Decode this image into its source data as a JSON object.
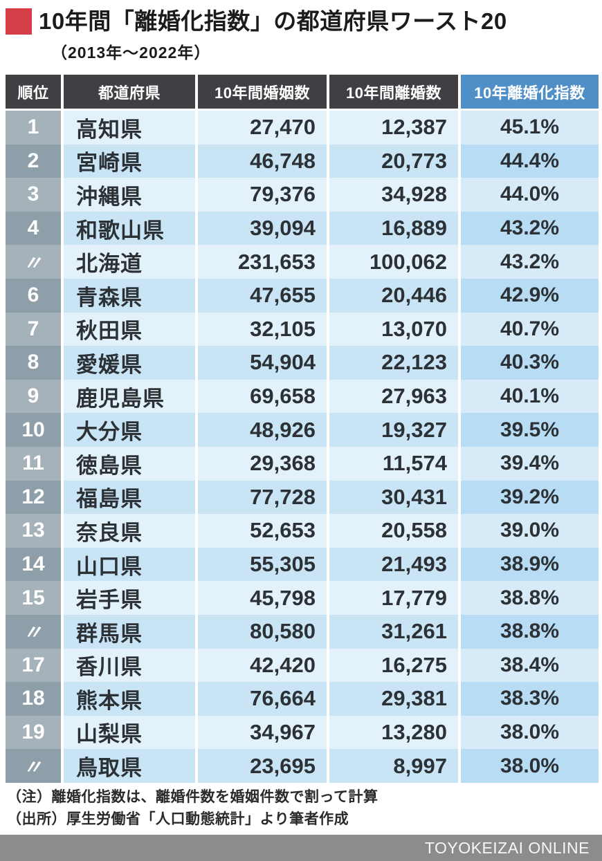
{
  "title": {
    "text": "10年間「離婚化指数」の都道府県ワースト20",
    "subtitle": "（2013年～2022年）"
  },
  "colors": {
    "accent_red": "#d53d47",
    "header_dark": "#3f3f44",
    "header_blue": "#4e8fc7",
    "rank_odd": "#a6b2ba",
    "rank_even": "#8f9fa9",
    "row_odd": "#e3f1fa",
    "row_even": "#c9e4f5",
    "index_odd": "#d7eaf7",
    "index_even": "#b7dcf3",
    "footer_gray": "#8c8c8c"
  },
  "table": {
    "headers": [
      "順位",
      "都道府県",
      "10年間婚姻数",
      "10年間離婚数",
      "10年離婚化指数"
    ],
    "rows": [
      [
        "1",
        "高知県",
        "27,470",
        "12,387",
        "45.1%"
      ],
      [
        "2",
        "宮崎県",
        "46,748",
        "20,773",
        "44.4%"
      ],
      [
        "3",
        "沖縄県",
        "79,376",
        "34,928",
        "44.0%"
      ],
      [
        "4",
        "和歌山県",
        "39,094",
        "16,889",
        "43.2%"
      ],
      [
        "〃",
        "北海道",
        "231,653",
        "100,062",
        "43.2%"
      ],
      [
        "6",
        "青森県",
        "47,655",
        "20,446",
        "42.9%"
      ],
      [
        "7",
        "秋田県",
        "32,105",
        "13,070",
        "40.7%"
      ],
      [
        "8",
        "愛媛県",
        "54,904",
        "22,123",
        "40.3%"
      ],
      [
        "9",
        "鹿児島県",
        "69,658",
        "27,963",
        "40.1%"
      ],
      [
        "10",
        "大分県",
        "48,926",
        "19,327",
        "39.5%"
      ],
      [
        "11",
        "徳島県",
        "29,368",
        "11,574",
        "39.4%"
      ],
      [
        "12",
        "福島県",
        "77,728",
        "30,431",
        "39.2%"
      ],
      [
        "13",
        "奈良県",
        "52,653",
        "20,558",
        "39.0%"
      ],
      [
        "14",
        "山口県",
        "55,305",
        "21,493",
        "38.9%"
      ],
      [
        "15",
        "岩手県",
        "45,798",
        "17,779",
        "38.8%"
      ],
      [
        "〃",
        "群馬県",
        "80,580",
        "31,261",
        "38.8%"
      ],
      [
        "17",
        "香川県",
        "42,420",
        "16,275",
        "38.4%"
      ],
      [
        "18",
        "熊本県",
        "76,664",
        "29,381",
        "38.3%"
      ],
      [
        "19",
        "山梨県",
        "34,967",
        "13,280",
        "38.0%"
      ],
      [
        "〃",
        "鳥取県",
        "23,695",
        "8,997",
        "38.0%"
      ]
    ]
  },
  "notes": [
    "（注）離婚化指数は、離婚件数を婚姻件数で割って計算",
    "（出所）厚生労働省「人口動態統計」より筆者作成"
  ],
  "footer": {
    "brand": "TOYOKEIZAI ONLINE"
  },
  "chart_data": {
    "type": "table",
    "title": "10年間「離婚化指数」の都道府県ワースト20（2013年～2022年）",
    "columns": [
      "順位",
      "都道府県",
      "10年間婚姻数",
      "10年間離婚数",
      "10年離婚化指数"
    ],
    "rows": [
      {
        "rank": 1,
        "prefecture": "高知県",
        "marriages_10yr": 27470,
        "divorces_10yr": 12387,
        "divorce_index_pct": 45.1
      },
      {
        "rank": 2,
        "prefecture": "宮崎県",
        "marriages_10yr": 46748,
        "divorces_10yr": 20773,
        "divorce_index_pct": 44.4
      },
      {
        "rank": 3,
        "prefecture": "沖縄県",
        "marriages_10yr": 79376,
        "divorces_10yr": 34928,
        "divorce_index_pct": 44.0
      },
      {
        "rank": 4,
        "prefecture": "和歌山県",
        "marriages_10yr": 39094,
        "divorces_10yr": 16889,
        "divorce_index_pct": 43.2
      },
      {
        "rank": 4,
        "prefecture": "北海道",
        "marriages_10yr": 231653,
        "divorces_10yr": 100062,
        "divorce_index_pct": 43.2
      },
      {
        "rank": 6,
        "prefecture": "青森県",
        "marriages_10yr": 47655,
        "divorces_10yr": 20446,
        "divorce_index_pct": 42.9
      },
      {
        "rank": 7,
        "prefecture": "秋田県",
        "marriages_10yr": 32105,
        "divorces_10yr": 13070,
        "divorce_index_pct": 40.7
      },
      {
        "rank": 8,
        "prefecture": "愛媛県",
        "marriages_10yr": 54904,
        "divorces_10yr": 22123,
        "divorce_index_pct": 40.3
      },
      {
        "rank": 9,
        "prefecture": "鹿児島県",
        "marriages_10yr": 69658,
        "divorces_10yr": 27963,
        "divorce_index_pct": 40.1
      },
      {
        "rank": 10,
        "prefecture": "大分県",
        "marriages_10yr": 48926,
        "divorces_10yr": 19327,
        "divorce_index_pct": 39.5
      },
      {
        "rank": 11,
        "prefecture": "徳島県",
        "marriages_10yr": 29368,
        "divorces_10yr": 11574,
        "divorce_index_pct": 39.4
      },
      {
        "rank": 12,
        "prefecture": "福島県",
        "marriages_10yr": 77728,
        "divorces_10yr": 30431,
        "divorce_index_pct": 39.2
      },
      {
        "rank": 13,
        "prefecture": "奈良県",
        "marriages_10yr": 52653,
        "divorces_10yr": 20558,
        "divorce_index_pct": 39.0
      },
      {
        "rank": 14,
        "prefecture": "山口県",
        "marriages_10yr": 55305,
        "divorces_10yr": 21493,
        "divorce_index_pct": 38.9
      },
      {
        "rank": 15,
        "prefecture": "岩手県",
        "marriages_10yr": 45798,
        "divorces_10yr": 17779,
        "divorce_index_pct": 38.8
      },
      {
        "rank": 15,
        "prefecture": "群馬県",
        "marriages_10yr": 80580,
        "divorces_10yr": 31261,
        "divorce_index_pct": 38.8
      },
      {
        "rank": 17,
        "prefecture": "香川県",
        "marriages_10yr": 42420,
        "divorces_10yr": 16275,
        "divorce_index_pct": 38.4
      },
      {
        "rank": 18,
        "prefecture": "熊本県",
        "marriages_10yr": 76664,
        "divorces_10yr": 29381,
        "divorce_index_pct": 38.3
      },
      {
        "rank": 19,
        "prefecture": "山梨県",
        "marriages_10yr": 34967,
        "divorces_10yr": 13280,
        "divorce_index_pct": 38.0
      },
      {
        "rank": 19,
        "prefecture": "鳥取県",
        "marriages_10yr": 23695,
        "divorces_10yr": 8997,
        "divorce_index_pct": 38.0
      }
    ],
    "notes": [
      "離婚化指数は、離婚件数を婚姻件数で割って計算",
      "厚生労働省「人口動態統計」より筆者作成"
    ]
  }
}
